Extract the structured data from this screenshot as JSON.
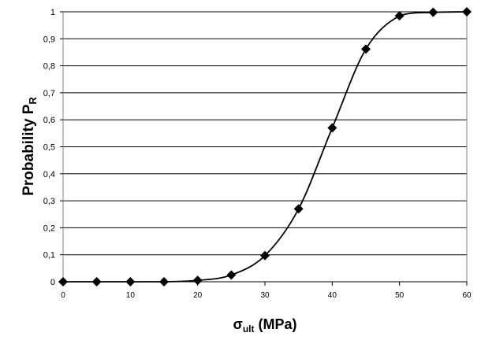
{
  "chart_data": {
    "type": "line",
    "xlabel": "σ",
    "xlabel_sub": "ult",
    "xlabel_units": " (MPa)",
    "ylabel": "Probability P",
    "ylabel_sub": "R",
    "xlim": [
      0,
      60
    ],
    "ylim": [
      0,
      1
    ],
    "x_ticks": [
      0,
      10,
      20,
      30,
      40,
      50,
      60
    ],
    "y_ticks": [
      0,
      0.1,
      0.2,
      0.3,
      0.4,
      0.5,
      0.6,
      0.7,
      0.8,
      0.9,
      1
    ],
    "y_tick_labels": [
      "0",
      "0,1",
      "0,2",
      "0,3",
      "0,4",
      "0,5",
      "0,6",
      "0,7",
      "0,8",
      "0,9",
      "1"
    ],
    "x_tick_labels": [
      "0",
      "10",
      "20",
      "30",
      "40",
      "50",
      "60"
    ],
    "grid": "horizontal",
    "marker": "diamond",
    "series": [
      {
        "x": [
          0,
          5,
          10,
          15,
          20,
          25,
          30,
          35,
          40,
          45,
          50,
          55,
          60
        ],
        "y": [
          0,
          0,
          0,
          0,
          0.005,
          0.025,
          0.097,
          0.27,
          0.57,
          0.862,
          0.985,
          0.998,
          1.0
        ]
      }
    ]
  }
}
